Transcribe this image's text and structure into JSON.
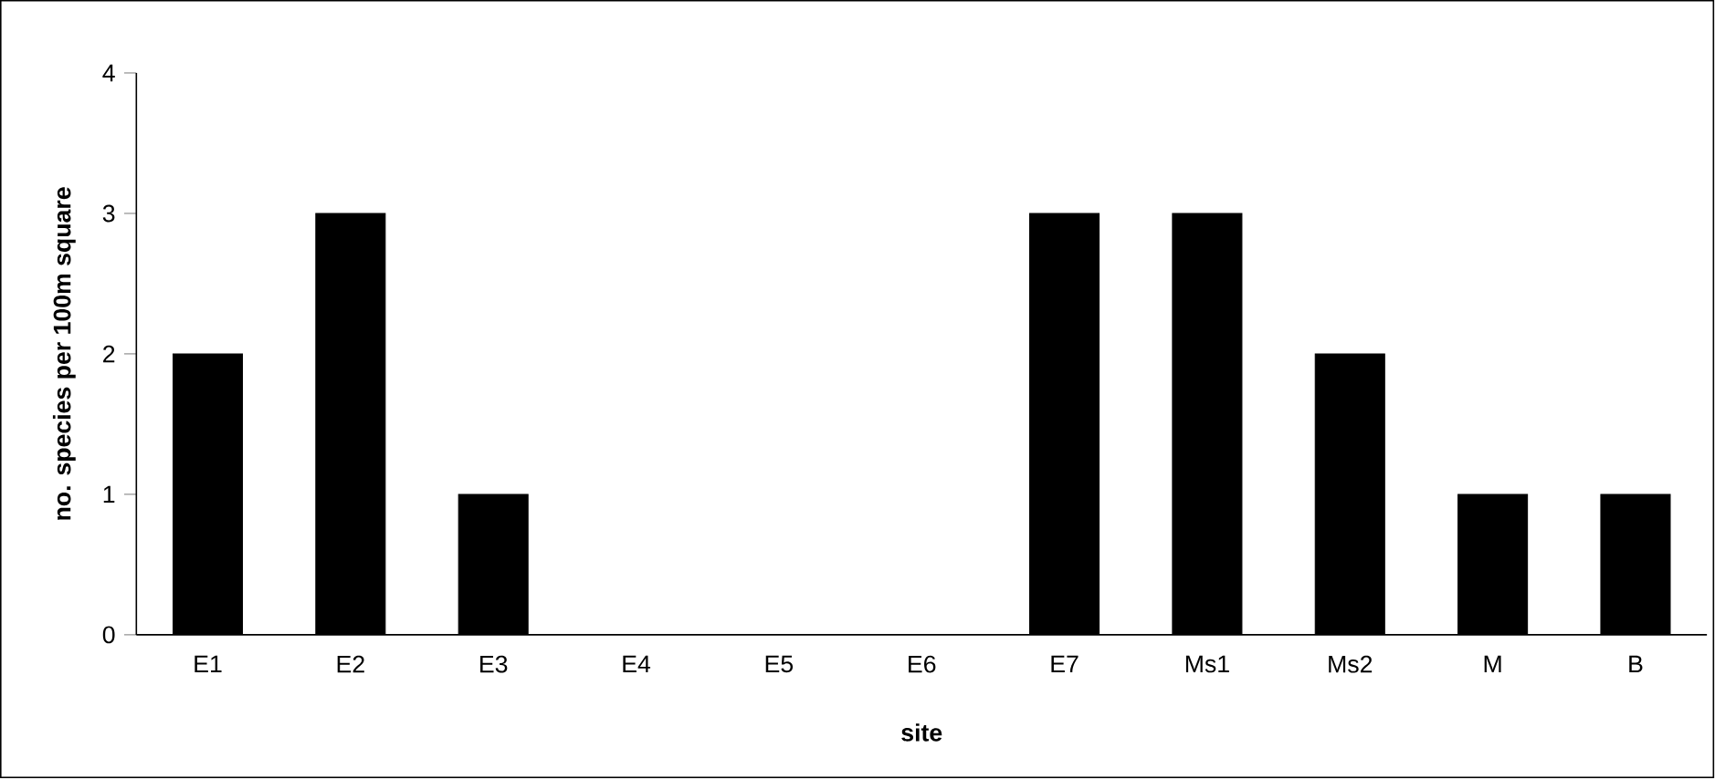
{
  "chart_data": {
    "type": "bar",
    "xlabel": "site",
    "ylabel": "no. species per 100m square",
    "categories": [
      "E1",
      "E2",
      "E3",
      "E4",
      "E5",
      "E6",
      "E7",
      "Ms1",
      "Ms2",
      "M",
      "B"
    ],
    "values": [
      2,
      3,
      1,
      0,
      0,
      0,
      3,
      3,
      2,
      1,
      1
    ],
    "color": "#000000",
    "ylim": [
      0,
      4
    ],
    "yticks": [
      0,
      1,
      2,
      3,
      4
    ]
  }
}
